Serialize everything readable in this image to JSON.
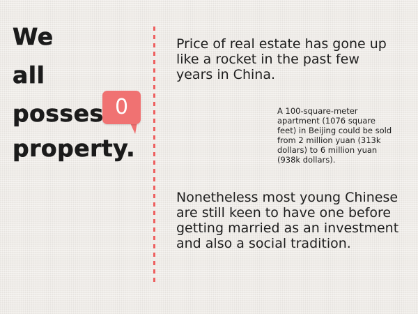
{
  "title": {
    "line1": "We",
    "line2": "all",
    "line3": "possess",
    "line4": "property."
  },
  "badge": {
    "value": "0",
    "color": "#f07272"
  },
  "divider_color": "#ee5f5f",
  "main_text": "Price of real estate has gone up like a rocket in the past few years in China.",
  "note_text": "A 100-square-meter apartment (1076 square feet) in Beijing could be sold from 2 million yuan (313k dollars) to 6 million yuan (938k dollars).",
  "second_text": "Nonetheless most young Chinese are still keen to have one before getting married as an investment and also a social tradition."
}
